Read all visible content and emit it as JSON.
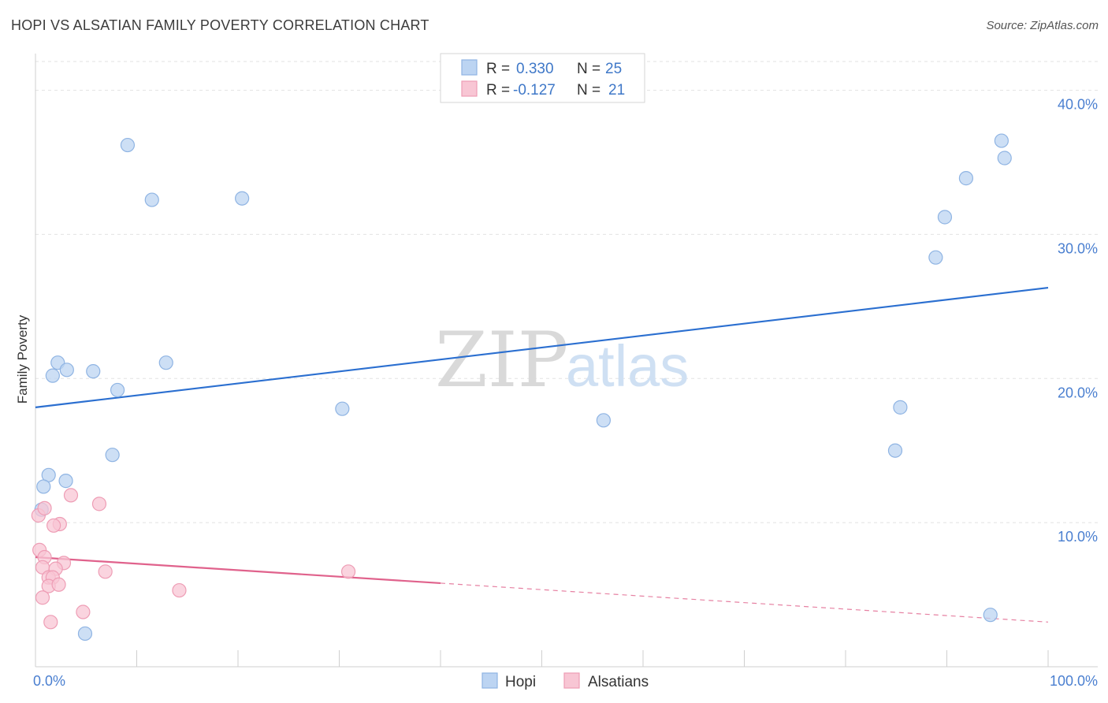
{
  "header": {
    "title": "HOPI VS ALSATIAN FAMILY POVERTY CORRELATION CHART",
    "source": "Source: ZipAtlas.com"
  },
  "watermark": {
    "zip": "ZIP",
    "atlas": "atlas"
  },
  "colors": {
    "hopi_fill": "#bcd4f2",
    "hopi_stroke": "#8fb4e3",
    "hopi_line": "#2b6fd0",
    "alsatian_fill": "#f8c6d4",
    "alsatian_stroke": "#ee9db5",
    "alsatian_line": "#e0628c",
    "grid": "#e2e2e2",
    "tick_label": "#4a7fd0"
  },
  "legend": {
    "rows": [
      {
        "r_label": "R =",
        "r_value": "0.330",
        "n_label": "N =",
        "n_value": "25",
        "series": "hopi"
      },
      {
        "r_label": "R =",
        "r_value": "-0.127",
        "n_label": "N =",
        "n_value": "21",
        "series": "alsatian"
      }
    ]
  },
  "bottom_legend": {
    "hopi": "Hopi",
    "alsatian": "Alsatians"
  },
  "chart_data": {
    "type": "scatter",
    "title": "HOPI VS ALSATIAN FAMILY POVERTY CORRELATION CHART",
    "xlabel": "",
    "ylabel": "Family Poverty",
    "xlim": [
      0,
      100
    ],
    "ylim": [
      0,
      42
    ],
    "x_tick_labels": {
      "min": "0.0%",
      "max": "100.0%"
    },
    "y_ticks": [
      10,
      20,
      30,
      40
    ],
    "y_tick_labels": [
      "10.0%",
      "20.0%",
      "30.0%",
      "40.0%"
    ],
    "grid": true,
    "series": [
      {
        "name": "Hopi",
        "key": "hopi",
        "r": 0.33,
        "n": 25,
        "points": [
          [
            9.1,
            36.2
          ],
          [
            11.5,
            32.4
          ],
          [
            20.4,
            32.5
          ],
          [
            2.2,
            21.1
          ],
          [
            1.7,
            20.2
          ],
          [
            3.1,
            20.6
          ],
          [
            5.7,
            20.5
          ],
          [
            12.9,
            21.1
          ],
          [
            8.1,
            19.2
          ],
          [
            30.3,
            17.9
          ],
          [
            56.1,
            17.1
          ],
          [
            7.6,
            14.7
          ],
          [
            1.3,
            13.3
          ],
          [
            3.0,
            12.9
          ],
          [
            0.8,
            12.5
          ],
          [
            0.6,
            10.9
          ],
          [
            4.9,
            2.3
          ],
          [
            94.3,
            3.6
          ],
          [
            95.4,
            36.5
          ],
          [
            95.7,
            35.3
          ],
          [
            91.9,
            33.9
          ],
          [
            89.8,
            31.2
          ],
          [
            88.9,
            28.4
          ],
          [
            85.4,
            18.0
          ],
          [
            84.9,
            15.0
          ]
        ],
        "trend": {
          "x0": 0,
          "y0": 18.0,
          "x1": 100,
          "y1": 26.3,
          "solid_to_x": 100
        }
      },
      {
        "name": "Alsatians",
        "key": "alsatian",
        "r": -0.127,
        "n": 21,
        "points": [
          [
            0.3,
            10.5
          ],
          [
            0.9,
            11.0
          ],
          [
            3.5,
            11.9
          ],
          [
            6.3,
            11.3
          ],
          [
            2.4,
            9.9
          ],
          [
            1.8,
            9.8
          ],
          [
            0.4,
            8.1
          ],
          [
            0.9,
            7.6
          ],
          [
            2.8,
            7.2
          ],
          [
            0.7,
            6.9
          ],
          [
            2.0,
            6.8
          ],
          [
            6.9,
            6.6
          ],
          [
            30.9,
            6.6
          ],
          [
            1.3,
            6.2
          ],
          [
            1.7,
            6.2
          ],
          [
            1.3,
            5.6
          ],
          [
            2.3,
            5.7
          ],
          [
            14.2,
            5.3
          ],
          [
            0.7,
            4.8
          ],
          [
            4.7,
            3.8
          ],
          [
            1.5,
            3.1
          ]
        ],
        "trend": {
          "x0": 0,
          "y0": 7.6,
          "x1": 100,
          "y1": 3.1,
          "solid_to_x": 40
        }
      }
    ]
  }
}
